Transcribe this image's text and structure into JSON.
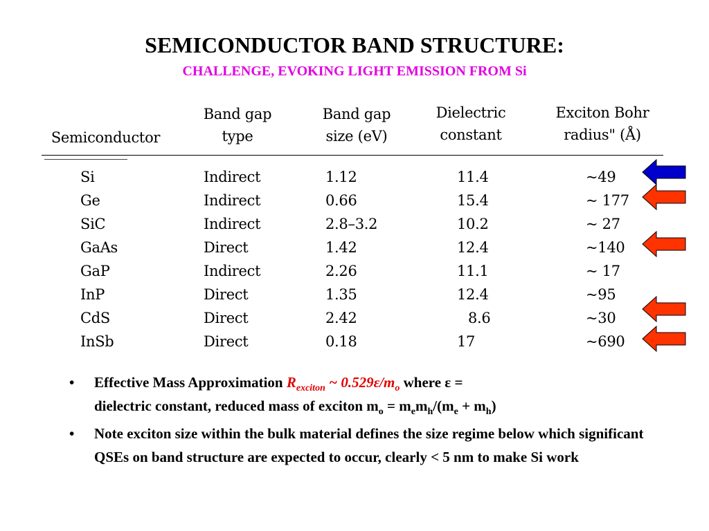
{
  "title": "SEMICONDUCTOR BAND STRUCTURE:",
  "subtitle": "CHALLENGE, EVOKING LIGHT EMISSION FROM Si",
  "table": {
    "headers": {
      "semiconductor": "Semiconductor",
      "gap_type_1": "Band gap",
      "gap_type_2": "type",
      "gap_size_1": "Band gap",
      "gap_size_2": "size (eV)",
      "dielectric_1": "Dielectric",
      "dielectric_2": "constant",
      "bohr_1": "Exciton Bohr",
      "bohr_2": "radius\" (Å)"
    },
    "rows": [
      {
        "name": "Si",
        "type": "Indirect",
        "size": "1.12",
        "dielectric": "11.4",
        "radius": "~49"
      },
      {
        "name": "Ge",
        "type": "Indirect",
        "size": "0.66",
        "dielectric": "15.4",
        "radius": "~ 177"
      },
      {
        "name": "SiC",
        "type": "Indirect",
        "size": "2.8–3.2",
        "dielectric": "10.2",
        "radius": "~ 27"
      },
      {
        "name": "GaAs",
        "type": "Direct",
        "size": "1.42",
        "dielectric": "12.4",
        "radius": "~140"
      },
      {
        "name": "GaP",
        "type": "Indirect",
        "size": "2.26",
        "dielectric": "11.1",
        "radius": "~ 17"
      },
      {
        "name": "InP",
        "type": "Direct",
        "size": "1.35",
        "dielectric": "12.4",
        "radius": "~95"
      },
      {
        "name": "CdS",
        "type": "Direct",
        "size": "2.42",
        "dielectric": "8.6",
        "radius": "~30"
      },
      {
        "name": "InSb",
        "type": "Direct",
        "size": "0.18",
        "dielectric": "17",
        "radius": "~690"
      }
    ]
  },
  "arrows": {
    "blue_color": "#0000cc",
    "red_color": "#ff3300",
    "blue_icon": "left-arrow-icon-blue",
    "red_icon": "left-arrow-icon-red"
  },
  "bullets": {
    "mark": "•",
    "b1_text1": "Effective Mass Approximation ",
    "b1_R": "R",
    "b1_R_sub": "exciton",
    "b1_formula": " ~ 0.529ε/m",
    "b1_formula_sub": "o",
    "b1_text2": " where ε  =",
    "b1_text3": "dielectric constant, reduced mass of exciton m",
    "b1_sub_o": "o",
    "b1_text4": " = m",
    "b1_sub_e": "e",
    "b1_text5": "m",
    "b1_sub_h": "h",
    "b1_text6": "/(m",
    "b1_sub_e2": "e",
    "b1_text7": " + m",
    "b1_sub_h2": "h",
    "b1_text8": ")",
    "b2_text": "Note exciton size within the bulk material defines the size regime below which significant QSEs on band structure are expected to occur, clearly < 5 nm to make Si work"
  }
}
